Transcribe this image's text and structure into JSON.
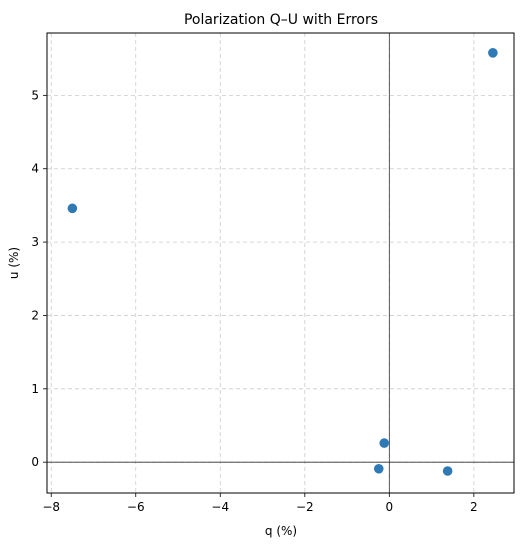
{
  "chart_data": {
    "type": "scatter",
    "title": "Polarization Q–U with Errors",
    "xlabel": "q (%)",
    "ylabel": "u (%)",
    "xlim": [
      -8.1,
      2.95
    ],
    "ylim": [
      -0.42,
      5.85
    ],
    "xticks": [
      -8,
      -6,
      -4,
      -2,
      0,
      2
    ],
    "yticks": [
      0,
      1,
      2,
      3,
      4,
      5
    ],
    "grid": true,
    "reference_lines": {
      "x": 0,
      "y": 0
    },
    "series": [
      {
        "color": "#2f7ab5",
        "points": [
          {
            "x": -7.5,
            "y": 3.46
          },
          {
            "x": -0.25,
            "y": -0.09
          },
          {
            "x": -0.12,
            "y": 0.26
          },
          {
            "x": 1.38,
            "y": -0.12
          },
          {
            "x": 2.45,
            "y": 5.58
          }
        ]
      }
    ]
  }
}
